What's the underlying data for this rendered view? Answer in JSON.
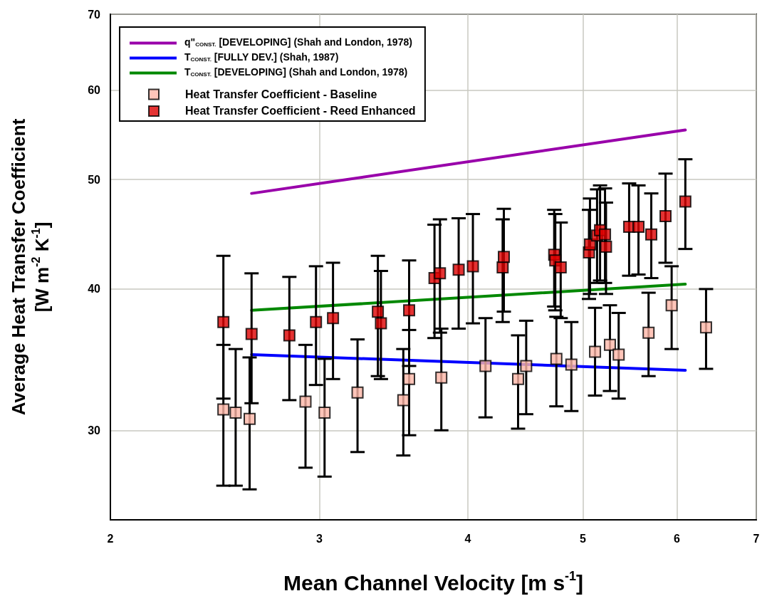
{
  "chart_data": {
    "type": "scatter",
    "xlabel": "Mean Channel Velocity [m s$^{-1}$]",
    "ylabel": "Average Heat Transfer Coefficient\n[W m$^{-2}$ K$^{-1}$]",
    "log": "xy",
    "xlim": [
      2,
      7
    ],
    "xticks": [
      2,
      3,
      4,
      5,
      6,
      7
    ],
    "ylim": [
      25,
      70
    ],
    "yticks": [
      30,
      40,
      50,
      60,
      70
    ],
    "grid": true,
    "legend": "top left",
    "series": [
      {
        "name": "q\"$_{CONST.}$ [DEVELOPING] (Shah and London, 1978)",
        "type": "line",
        "marker": "none",
        "line_style": "solid",
        "color": "#9900aa",
        "x": [
          2.63,
          6.1
        ],
        "values": [
          48.6,
          55.3
        ]
      },
      {
        "name": "T$_{CONST.}$ [FULLY DEV.] (Shah, 1987)",
        "type": "line",
        "marker": "none",
        "line_style": "solid",
        "color": "#0000ff",
        "x": [
          2.63,
          6.1
        ],
        "values": [
          35.0,
          33.9
        ]
      },
      {
        "name": "T$_{CONST.}$ [DEVELOPING] (Shah and London, 1978)",
        "type": "line",
        "marker": "none",
        "line_style": "solid",
        "color": "#008800",
        "x": [
          2.63,
          6.1
        ],
        "values": [
          38.3,
          40.4
        ]
      },
      {
        "name": "Heat Transfer Coefficient - Baseline",
        "type": "scatter",
        "marker": "square",
        "color": "#ffb6a8",
        "x": [
          2.49,
          2.55,
          2.62,
          2.92,
          3.03,
          3.23,
          3.53,
          3.57,
          3.8,
          4.14,
          4.41,
          4.48,
          4.75,
          4.89,
          5.12,
          5.27,
          5.36,
          5.68,
          5.94,
          6.35
        ],
        "values": [
          31.3,
          31.1,
          30.7,
          31.8,
          31.1,
          32.4,
          31.9,
          33.3,
          33.4,
          34.2,
          33.3,
          34.2,
          34.7,
          34.3,
          35.2,
          35.7,
          35.0,
          36.6,
          38.7,
          37.0
        ],
        "errors": [
          [
            26.8,
            35.7
          ],
          [
            26.8,
            35.4
          ],
          [
            26.6,
            34.8
          ],
          [
            27.8,
            35.7
          ],
          [
            27.3,
            34.7
          ],
          [
            28.7,
            36.1
          ],
          [
            28.5,
            35.4
          ],
          [
            29.7,
            36.8
          ],
          [
            30.0,
            36.9
          ],
          [
            30.8,
            37.7
          ],
          [
            30.1,
            36.4
          ],
          [
            31.0,
            37.5
          ],
          [
            31.5,
            37.8
          ],
          [
            31.2,
            37.4
          ],
          [
            32.2,
            38.5
          ],
          [
            32.5,
            38.7
          ],
          [
            32.0,
            38.1
          ],
          [
            33.5,
            39.7
          ],
          [
            35.4,
            41.9
          ],
          [
            34.0,
            40.0
          ]
        ]
      },
      {
        "name": "Heat Transfer Coefficient - Reed Enhanced",
        "type": "scatter",
        "marker": "square",
        "color": "#dd0000",
        "x": [
          2.49,
          2.63,
          2.83,
          2.98,
          3.08,
          3.36,
          3.38,
          3.57,
          3.75,
          3.79,
          3.93,
          4.04,
          4.28,
          4.29,
          4.73,
          4.74,
          4.79,
          5.06,
          5.07,
          5.14,
          5.17,
          5.22,
          5.23,
          5.47,
          5.57,
          5.71,
          5.87,
          6.1
        ],
        "values": [
          37.4,
          36.5,
          36.4,
          37.4,
          37.7,
          38.2,
          37.3,
          38.3,
          40.9,
          41.3,
          41.6,
          41.9,
          41.8,
          42.7,
          42.9,
          42.4,
          41.8,
          43.1,
          43.8,
          44.6,
          45.1,
          44.7,
          43.6,
          45.4,
          45.4,
          44.7,
          46.4,
          47.8
        ],
        "errors": [
          [
            32.0,
            42.8
          ],
          [
            31.7,
            41.3
          ],
          [
            31.9,
            41.0
          ],
          [
            32.9,
            41.9
          ],
          [
            33.3,
            42.2
          ],
          [
            33.5,
            42.8
          ],
          [
            33.3,
            41.5
          ],
          [
            34.2,
            42.4
          ],
          [
            36.2,
            45.6
          ],
          [
            36.6,
            46.1
          ],
          [
            36.9,
            46.2
          ],
          [
            37.3,
            46.6
          ],
          [
            37.4,
            46.1
          ],
          [
            38.2,
            47.1
          ],
          [
            38.6,
            47.0
          ],
          [
            38.3,
            46.6
          ],
          [
            37.7,
            45.8
          ],
          [
            39.2,
            47.0
          ],
          [
            39.6,
            48.1
          ],
          [
            40.5,
            49.0
          ],
          [
            40.7,
            49.4
          ],
          [
            40.5,
            49.1
          ],
          [
            39.6,
            47.7
          ],
          [
            41.1,
            49.6
          ],
          [
            41.2,
            49.4
          ],
          [
            40.9,
            48.6
          ],
          [
            42.2,
            50.6
          ],
          [
            43.4,
            52.1
          ]
        ]
      }
    ]
  }
}
